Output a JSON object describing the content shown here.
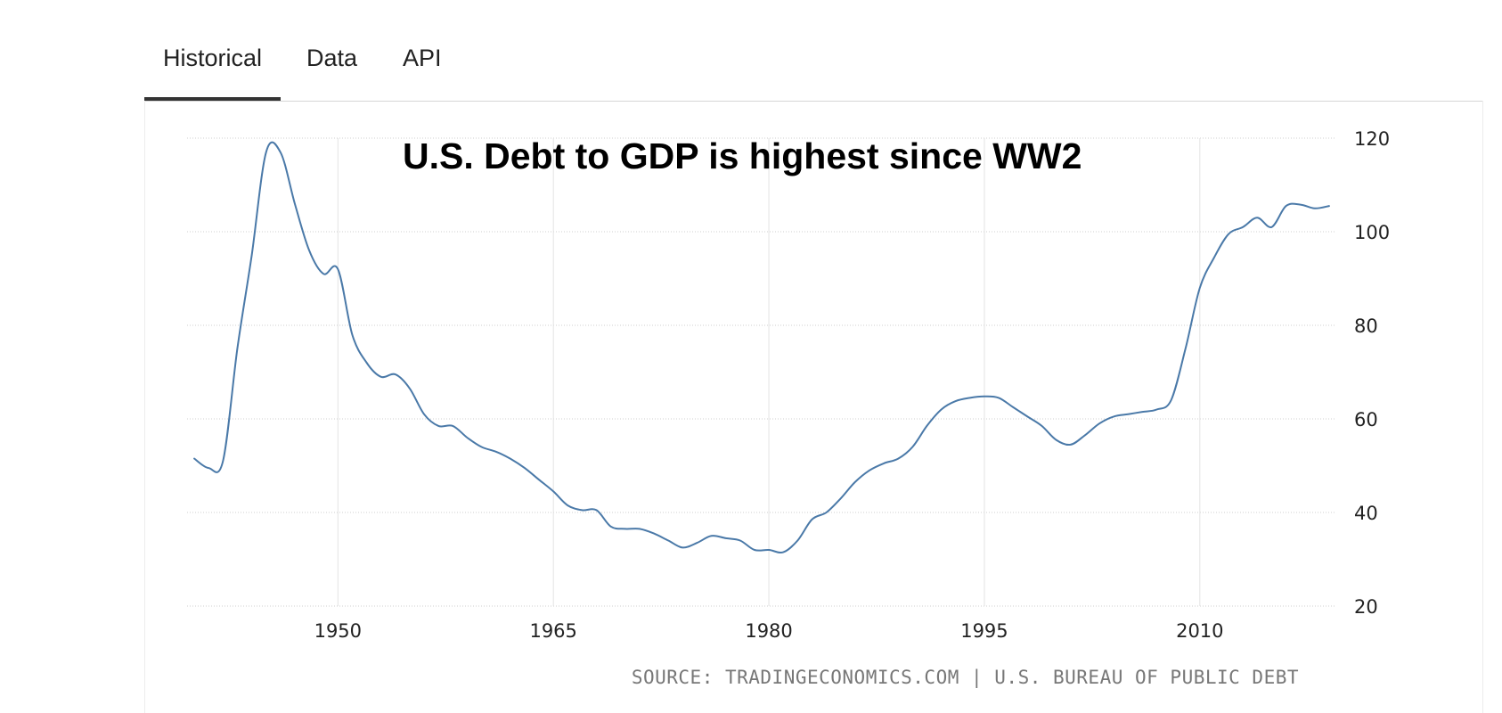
{
  "tabs": [
    {
      "label": "Historical",
      "active": true
    },
    {
      "label": "Data",
      "active": false
    },
    {
      "label": "API",
      "active": false
    }
  ],
  "chart_data": {
    "type": "line",
    "title": "U.S. Debt to GDP is highest since WW2",
    "source": "SOURCE: TRADINGECONOMICS.COM | U.S. BUREAU OF PUBLIC DEBT",
    "xlabel": "",
    "ylabel": "",
    "xlim": [
      1939.5,
      2019.5
    ],
    "ylim": [
      20,
      120
    ],
    "x_ticks": [
      1950,
      1965,
      1980,
      1995,
      2010
    ],
    "y_ticks": [
      20,
      40,
      60,
      80,
      100,
      120
    ],
    "y_axis_position": "right",
    "grid": true,
    "legend": "none",
    "line_color": "#4a79a8",
    "series": [
      {
        "x": [
          1940,
          1941,
          1942,
          1943,
          1944,
          1945,
          1946,
          1947,
          1948,
          1949,
          1950,
          1951,
          1952,
          1953,
          1954,
          1955,
          1956,
          1957,
          1958,
          1959,
          1960,
          1961,
          1962,
          1963,
          1964,
          1965,
          1966,
          1967,
          1968,
          1969,
          1970,
          1971,
          1972,
          1973,
          1974,
          1975,
          1976,
          1977,
          1978,
          1979,
          1980,
          1981,
          1982,
          1983,
          1984,
          1985,
          1986,
          1987,
          1988,
          1989,
          1990,
          1991,
          1992,
          1993,
          1994,
          1995,
          1996,
          1997,
          1998,
          1999,
          2000,
          2001,
          2002,
          2003,
          2004,
          2005,
          2006,
          2007,
          2008,
          2009,
          2010,
          2011,
          2012,
          2013,
          2014,
          2015,
          2016,
          2017,
          2018,
          2019
        ],
        "values": [
          51.5,
          49.5,
          51,
          75,
          95,
          117,
          117,
          106,
          96,
          91,
          92,
          78,
          72,
          69,
          69.5,
          66.5,
          61,
          58.5,
          58.5,
          56,
          54,
          53,
          51.5,
          49.5,
          47,
          44.5,
          41.5,
          40.5,
          40.5,
          37,
          36.5,
          36.5,
          35.5,
          34,
          32.5,
          33.5,
          35,
          34.5,
          34,
          32,
          32,
          31.5,
          34,
          38.5,
          40,
          43,
          46.5,
          49,
          50.5,
          51.5,
          54,
          58.5,
          62,
          63.8,
          64.5,
          64.8,
          64.5,
          62.5,
          60.5,
          58.5,
          55.5,
          54.5,
          56.5,
          59,
          60.5,
          61,
          61.5,
          62,
          64,
          75,
          88,
          94.5,
          99.5,
          101,
          103,
          101,
          105.5,
          105.8,
          105,
          105.5
        ]
      }
    ]
  }
}
